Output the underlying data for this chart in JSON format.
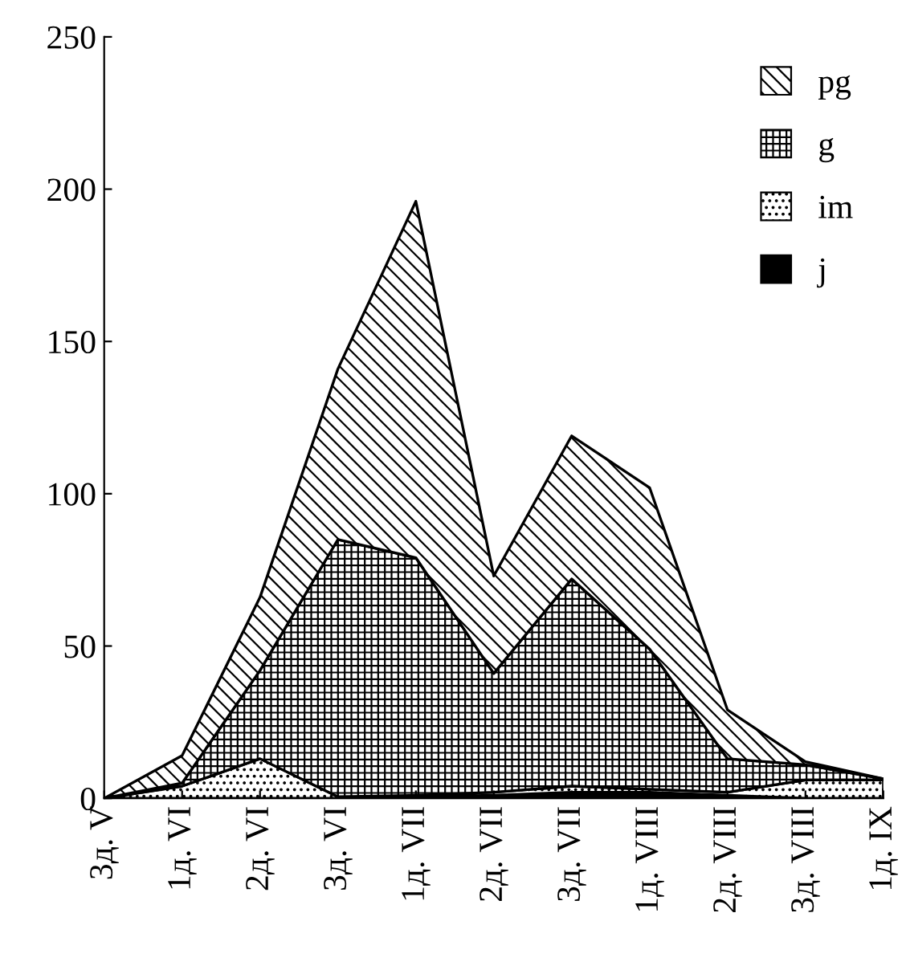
{
  "chart_data": {
    "type": "area",
    "stacked": true,
    "categories": [
      "3д. V",
      "1д. VI",
      "2д. VI",
      "3д. VI",
      "1д. VII",
      "2д. VII",
      "3д. VII",
      "1д. VIII",
      "2д. VIII",
      "3д. VIII",
      "1д. IX"
    ],
    "series": [
      {
        "name": "j",
        "color": "#000000",
        "values": [
          0,
          0,
          0,
          0,
          0.5,
          1,
          2,
          2,
          1,
          0,
          0
        ]
      },
      {
        "name": "im",
        "color": "#000000",
        "values": [
          0,
          4,
          13,
          0.5,
          0.5,
          1,
          2,
          1,
          1,
          6,
          6
        ]
      },
      {
        "name": "g",
        "color": "#000000",
        "values": [
          0,
          1,
          29,
          84.5,
          78,
          39,
          68,
          46,
          11,
          5,
          0.4
        ]
      },
      {
        "name": "pg",
        "color": "#000000",
        "values": [
          0,
          9,
          24,
          56,
          117,
          32,
          47,
          53,
          16,
          1,
          0
        ]
      }
    ],
    "ylim": [
      0,
      250
    ],
    "yticks": [
      0,
      50,
      100,
      150,
      200,
      250
    ],
    "grid": false,
    "legend": "top right"
  }
}
